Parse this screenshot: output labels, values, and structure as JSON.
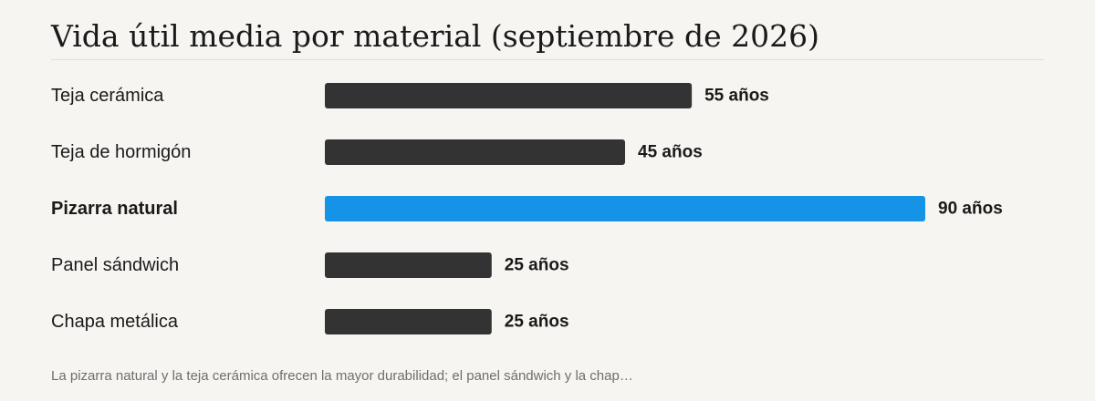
{
  "chart_data": {
    "type": "bar",
    "orientation": "horizontal",
    "title": "Vida útil media por material (septiembre de 2026)",
    "categories": [
      "Teja cerámica",
      "Teja de hormigón",
      "Pizarra natural",
      "Panel sándwich",
      "Chapa metálica"
    ],
    "values": [
      55,
      45,
      90,
      25,
      25
    ],
    "value_labels": [
      "55 años",
      "45 años",
      "90 años",
      "25 años",
      "25 años"
    ],
    "highlighted_category": "Pizarra natural",
    "colors": {
      "bar": "#333333",
      "highlight": "#1593e6",
      "label": "#1a1a1a"
    },
    "xlim": [
      0,
      90
    ],
    "grid": false,
    "legend": "none"
  },
  "footnote": "La pizarra natural y la teja cerámica ofrecen la mayor durabilidad; el panel sándwich y la chap…"
}
